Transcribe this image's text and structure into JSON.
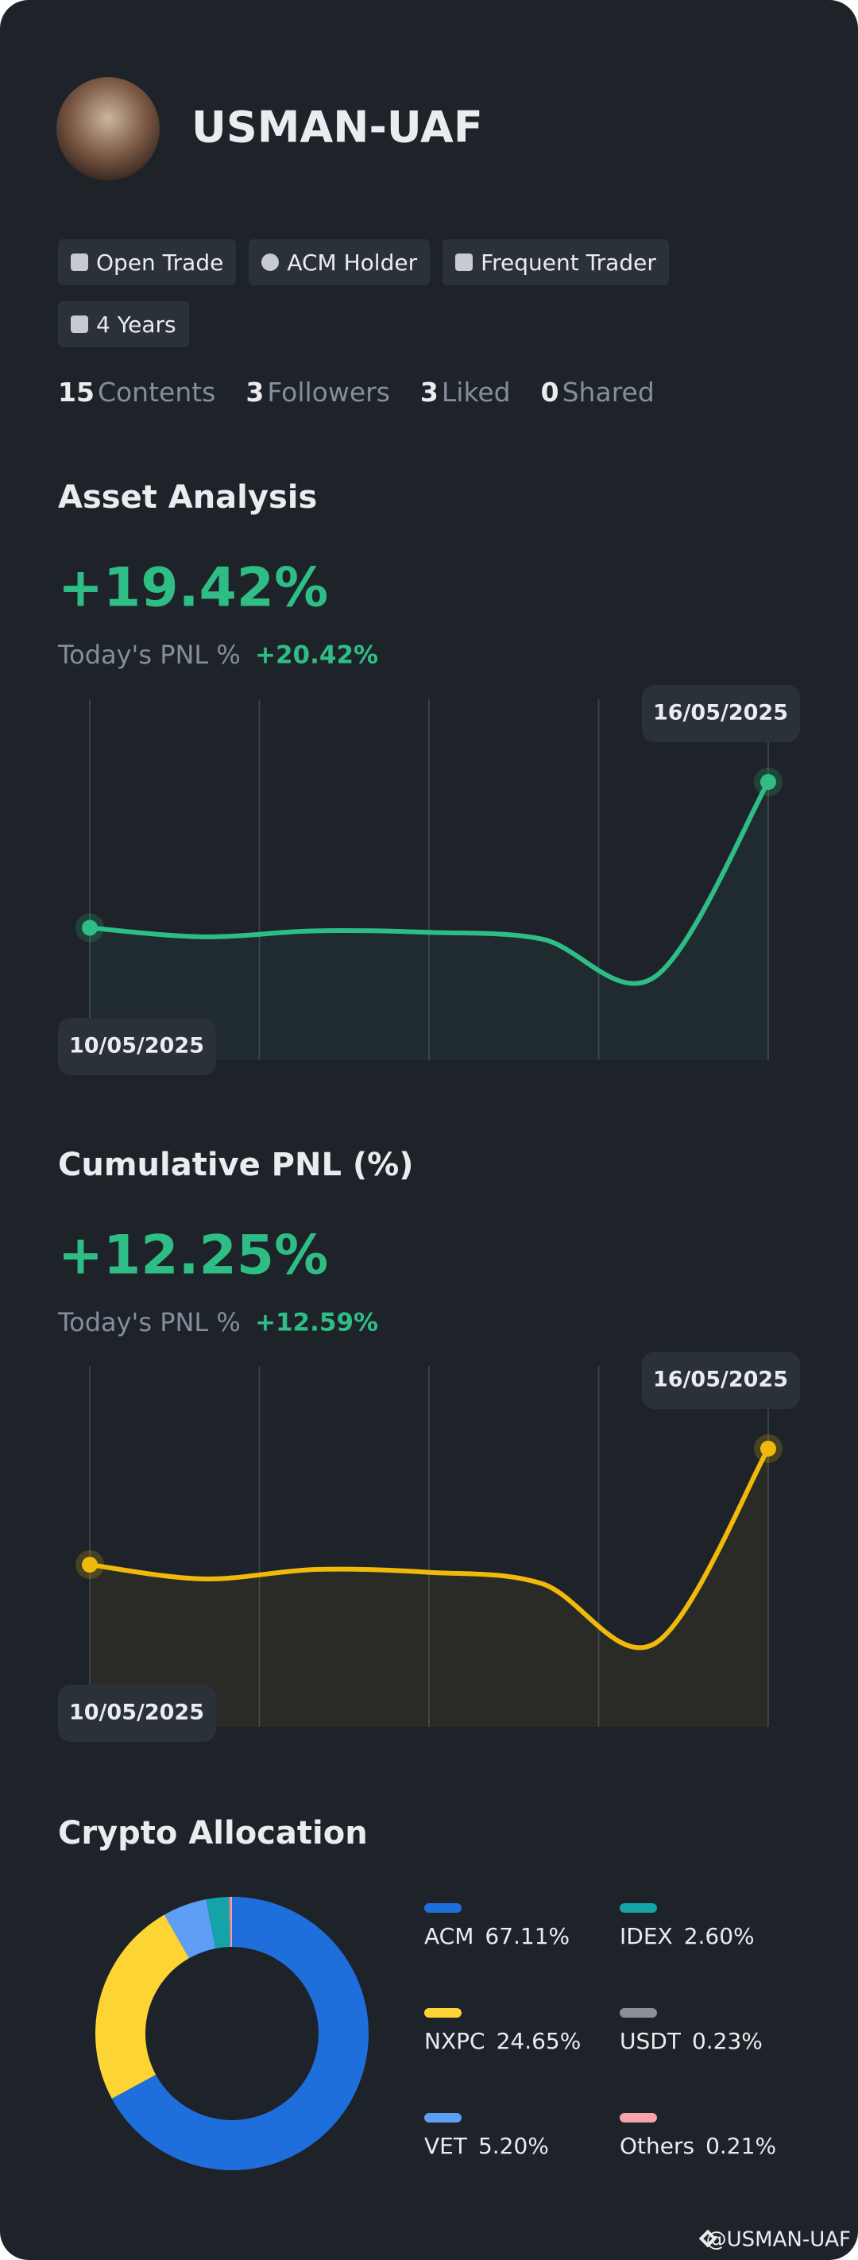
{
  "profile": {
    "name": "USMAN-UAF",
    "tags": [
      "Open Trade",
      "ACM Holder",
      "Frequent Trader",
      "4 Years"
    ],
    "stats": [
      {
        "count": 15,
        "label": "Contents"
      },
      {
        "count": 3,
        "label": "Followers"
      },
      {
        "count": 3,
        "label": "Liked"
      },
      {
        "count": 0,
        "label": "Shared"
      }
    ]
  },
  "asset_analysis": {
    "title": "Asset Analysis",
    "value": "+19.42%",
    "pnl_label": "Today's PNL %",
    "pnl_value": "+20.42%",
    "chart": {
      "type": "line",
      "categories": [
        "10/05/2025",
        null,
        null,
        null,
        null,
        null,
        "16/05/2025"
      ],
      "values": [
        0,
        -1.2,
        -0.4,
        -0.6,
        -1.5,
        -6.5,
        19.42
      ],
      "color": "#2ebd85"
    }
  },
  "cumulative_pnl": {
    "title": "Cumulative PNL (%)",
    "value": "+12.25%",
    "pnl_label": "Today's PNL %",
    "pnl_value": "+12.59%",
    "chart": {
      "type": "line",
      "categories": [
        "10/05/2025",
        null,
        null,
        null,
        null,
        null,
        "16/05/2025"
      ],
      "values": [
        0,
        -1.5,
        -0.5,
        -0.8,
        -2.0,
        -8.3,
        12.25
      ],
      "color": "#f0b90b"
    }
  },
  "allocation": {
    "title": "Crypto Allocation",
    "chart": {
      "type": "pie",
      "categories": [
        "ACM",
        "NXPC",
        "VET",
        "IDEX",
        "USDT",
        "Others"
      ],
      "values": [
        67.11,
        24.65,
        5.2,
        2.6,
        0.23,
        0.21
      ],
      "value_labels": [
        "67.11%",
        "24.65%",
        "5.20%",
        "2.60%",
        "0.23%",
        "0.21%"
      ],
      "colors": [
        "#1e6fdc",
        "#fcd535",
        "#5e9ef5",
        "#14a3a8",
        "#8a8f98",
        "#f6a3ab"
      ]
    }
  },
  "footer": "@USMAN-UAF"
}
